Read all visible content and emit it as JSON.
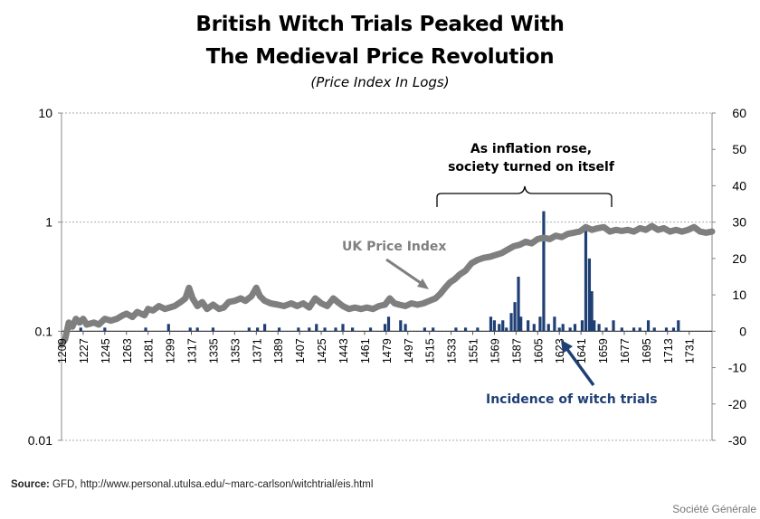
{
  "chart_data": {
    "type": "line",
    "title_line1": "British Witch Trials Peaked With",
    "title_line2": "The Medieval Price Revolution",
    "subtitle": "(Price Index In Logs)",
    "x_ticks": [
      1209,
      1227,
      1245,
      1263,
      1281,
      1299,
      1317,
      1335,
      1353,
      1371,
      1389,
      1407,
      1425,
      1443,
      1461,
      1479,
      1497,
      1515,
      1533,
      1551,
      1569,
      1587,
      1605,
      1623,
      1641,
      1659,
      1677,
      1695,
      1713,
      1731
    ],
    "x_range": [
      1209,
      1750
    ],
    "y_left": {
      "scale": "log",
      "range": [
        0.01,
        10
      ],
      "ticks": [
        "10",
        "1",
        "0.1",
        "0.01"
      ]
    },
    "y_right": {
      "range": [
        -30,
        60
      ],
      "ticks": [
        60,
        50,
        40,
        30,
        20,
        10,
        0,
        -10,
        -20,
        -30
      ]
    },
    "grid": "dashed horizontal at left-axis decades",
    "series": [
      {
        "name": "UK Price Index",
        "axis": "left",
        "color": "#7f7f7f",
        "points": [
          [
            1209,
            0.075
          ],
          [
            1212,
            0.085
          ],
          [
            1215,
            0.12
          ],
          [
            1218,
            0.11
          ],
          [
            1221,
            0.13
          ],
          [
            1224,
            0.12
          ],
          [
            1227,
            0.13
          ],
          [
            1230,
            0.115
          ],
          [
            1236,
            0.12
          ],
          [
            1240,
            0.115
          ],
          [
            1245,
            0.13
          ],
          [
            1250,
            0.125
          ],
          [
            1255,
            0.13
          ],
          [
            1260,
            0.14
          ],
          [
            1263,
            0.145
          ],
          [
            1268,
            0.135
          ],
          [
            1272,
            0.15
          ],
          [
            1278,
            0.14
          ],
          [
            1281,
            0.16
          ],
          [
            1285,
            0.155
          ],
          [
            1290,
            0.17
          ],
          [
            1295,
            0.16
          ],
          [
            1299,
            0.165
          ],
          [
            1303,
            0.17
          ],
          [
            1308,
            0.185
          ],
          [
            1312,
            0.2
          ],
          [
            1315,
            0.25
          ],
          [
            1318,
            0.2
          ],
          [
            1322,
            0.17
          ],
          [
            1326,
            0.185
          ],
          [
            1330,
            0.16
          ],
          [
            1335,
            0.175
          ],
          [
            1340,
            0.16
          ],
          [
            1344,
            0.165
          ],
          [
            1348,
            0.185
          ],
          [
            1353,
            0.19
          ],
          [
            1358,
            0.2
          ],
          [
            1362,
            0.19
          ],
          [
            1367,
            0.21
          ],
          [
            1371,
            0.25
          ],
          [
            1374,
            0.21
          ],
          [
            1378,
            0.19
          ],
          [
            1383,
            0.18
          ],
          [
            1389,
            0.175
          ],
          [
            1394,
            0.17
          ],
          [
            1400,
            0.18
          ],
          [
            1405,
            0.17
          ],
          [
            1410,
            0.18
          ],
          [
            1415,
            0.165
          ],
          [
            1420,
            0.2
          ],
          [
            1425,
            0.18
          ],
          [
            1430,
            0.17
          ],
          [
            1435,
            0.2
          ],
          [
            1440,
            0.18
          ],
          [
            1443,
            0.17
          ],
          [
            1448,
            0.16
          ],
          [
            1453,
            0.165
          ],
          [
            1458,
            0.16
          ],
          [
            1463,
            0.165
          ],
          [
            1468,
            0.16
          ],
          [
            1473,
            0.17
          ],
          [
            1478,
            0.175
          ],
          [
            1482,
            0.2
          ],
          [
            1486,
            0.18
          ],
          [
            1490,
            0.175
          ],
          [
            1495,
            0.17
          ],
          [
            1500,
            0.18
          ],
          [
            1505,
            0.175
          ],
          [
            1510,
            0.18
          ],
          [
            1515,
            0.19
          ],
          [
            1520,
            0.2
          ],
          [
            1524,
            0.22
          ],
          [
            1528,
            0.25
          ],
          [
            1532,
            0.28
          ],
          [
            1536,
            0.3
          ],
          [
            1540,
            0.33
          ],
          [
            1545,
            0.36
          ],
          [
            1550,
            0.42
          ],
          [
            1555,
            0.45
          ],
          [
            1560,
            0.47
          ],
          [
            1565,
            0.48
          ],
          [
            1570,
            0.5
          ],
          [
            1575,
            0.52
          ],
          [
            1580,
            0.56
          ],
          [
            1585,
            0.6
          ],
          [
            1590,
            0.62
          ],
          [
            1595,
            0.66
          ],
          [
            1600,
            0.64
          ],
          [
            1605,
            0.7
          ],
          [
            1610,
            0.72
          ],
          [
            1615,
            0.7
          ],
          [
            1620,
            0.75
          ],
          [
            1625,
            0.73
          ],
          [
            1630,
            0.78
          ],
          [
            1635,
            0.8
          ],
          [
            1640,
            0.82
          ],
          [
            1645,
            0.9
          ],
          [
            1650,
            0.85
          ],
          [
            1655,
            0.88
          ],
          [
            1660,
            0.9
          ],
          [
            1665,
            0.82
          ],
          [
            1670,
            0.85
          ],
          [
            1675,
            0.83
          ],
          [
            1680,
            0.85
          ],
          [
            1685,
            0.82
          ],
          [
            1690,
            0.88
          ],
          [
            1695,
            0.85
          ],
          [
            1700,
            0.92
          ],
          [
            1705,
            0.85
          ],
          [
            1710,
            0.88
          ],
          [
            1715,
            0.82
          ],
          [
            1720,
            0.85
          ],
          [
            1725,
            0.82
          ],
          [
            1730,
            0.85
          ],
          [
            1735,
            0.9
          ],
          [
            1740,
            0.82
          ],
          [
            1745,
            0.8
          ],
          [
            1750,
            0.82
          ]
        ]
      },
      {
        "name": "Incidence of witch trials",
        "axis": "right",
        "color": "#1f3f75",
        "bars": [
          [
            1215,
            3
          ],
          [
            1225,
            1
          ],
          [
            1245,
            1
          ],
          [
            1279,
            1
          ],
          [
            1298,
            2
          ],
          [
            1316,
            1
          ],
          [
            1322,
            1
          ],
          [
            1335,
            1
          ],
          [
            1365,
            1
          ],
          [
            1372,
            1
          ],
          [
            1378,
            2
          ],
          [
            1390,
            1
          ],
          [
            1406,
            1
          ],
          [
            1415,
            1
          ],
          [
            1421,
            2
          ],
          [
            1428,
            1
          ],
          [
            1437,
            1
          ],
          [
            1443,
            2
          ],
          [
            1451,
            1
          ],
          [
            1466,
            1
          ],
          [
            1478,
            2
          ],
          [
            1481,
            4
          ],
          [
            1491,
            3
          ],
          [
            1495,
            2
          ],
          [
            1511,
            1
          ],
          [
            1518,
            1
          ],
          [
            1537,
            1
          ],
          [
            1545,
            1
          ],
          [
            1555,
            1
          ],
          [
            1566,
            4
          ],
          [
            1569,
            3
          ],
          [
            1573,
            2
          ],
          [
            1576,
            3
          ],
          [
            1579,
            1
          ],
          [
            1583,
            5
          ],
          [
            1586,
            8
          ],
          [
            1589,
            15
          ],
          [
            1591,
            4
          ],
          [
            1597,
            3
          ],
          [
            1602,
            2
          ],
          [
            1607,
            4
          ],
          [
            1610,
            33
          ],
          [
            1614,
            2
          ],
          [
            1619,
            4
          ],
          [
            1623,
            1
          ],
          [
            1626,
            2
          ],
          [
            1632,
            1
          ],
          [
            1636,
            2
          ],
          [
            1642,
            3
          ],
          [
            1645,
            29
          ],
          [
            1648,
            20
          ],
          [
            1650,
            11
          ],
          [
            1652,
            3
          ],
          [
            1656,
            2
          ],
          [
            1662,
            1
          ],
          [
            1668,
            3
          ],
          [
            1675,
            1
          ],
          [
            1685,
            1
          ],
          [
            1690,
            1
          ],
          [
            1697,
            3
          ],
          [
            1702,
            1
          ],
          [
            1712,
            1
          ],
          [
            1718,
            1
          ],
          [
            1722,
            3
          ]
        ]
      }
    ],
    "annotations": {
      "bracket_text_1": "As inflation rose,",
      "bracket_text_2": "society turned on itself",
      "price_label": "UK Price Index",
      "trials_label": "Incidence of witch trials"
    }
  },
  "footer": {
    "source_label": "Source:",
    "source_text": "GFD, http://www.personal.utulsa.edu/~marc-carlson/witchtrial/eis.html",
    "credit": "Société Générale"
  }
}
